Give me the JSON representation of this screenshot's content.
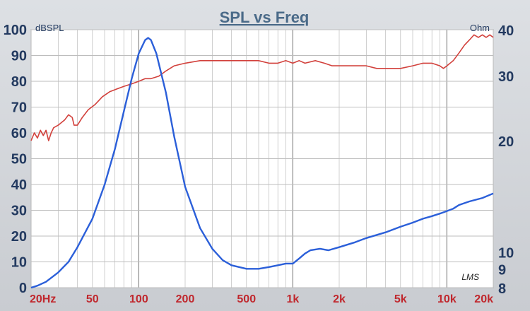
{
  "chart_data": {
    "type": "line",
    "title": "SPL vs Freq",
    "ylabel_left": "dBSPL",
    "ylabel_right": "Ohm",
    "watermark": "LMS",
    "x_scale": "log",
    "xlim": [
      20,
      20000
    ],
    "x_ticks": [
      {
        "value": 20,
        "label": "20Hz"
      },
      {
        "value": 50,
        "label": "50"
      },
      {
        "value": 100,
        "label": "100"
      },
      {
        "value": 200,
        "label": "200"
      },
      {
        "value": 500,
        "label": "500"
      },
      {
        "value": 1000,
        "label": "1k"
      },
      {
        "value": 2000,
        "label": "2k"
      },
      {
        "value": 5000,
        "label": "5k"
      },
      {
        "value": 10000,
        "label": "10k"
      },
      {
        "value": 20000,
        "label": "20k"
      }
    ],
    "ylim_left": [
      0,
      100
    ],
    "y_ticks_left": [
      0,
      10,
      20,
      30,
      40,
      50,
      60,
      70,
      80,
      90,
      100
    ],
    "y_scale_right": "log",
    "ylim_right": [
      8,
      40
    ],
    "y_ticks_right": [
      8,
      9,
      10,
      20,
      30,
      40
    ],
    "grid": true,
    "series": [
      {
        "axis": "left",
        "color": "#d2413c",
        "points": [
          [
            20,
            57
          ],
          [
            21,
            60
          ],
          [
            22,
            58
          ],
          [
            23,
            61
          ],
          [
            24,
            59
          ],
          [
            25,
            61
          ],
          [
            26,
            57
          ],
          [
            27,
            60
          ],
          [
            28,
            62
          ],
          [
            30,
            63
          ],
          [
            33,
            65
          ],
          [
            35,
            67
          ],
          [
            37,
            66
          ],
          [
            38,
            63
          ],
          [
            40,
            63
          ],
          [
            43,
            66
          ],
          [
            47,
            69
          ],
          [
            52,
            71
          ],
          [
            58,
            74
          ],
          [
            65,
            76
          ],
          [
            72,
            77
          ],
          [
            80,
            78
          ],
          [
            90,
            79
          ],
          [
            100,
            80
          ],
          [
            110,
            81
          ],
          [
            120,
            81
          ],
          [
            135,
            82
          ],
          [
            150,
            84
          ],
          [
            170,
            86
          ],
          [
            200,
            87
          ],
          [
            250,
            88
          ],
          [
            300,
            88
          ],
          [
            350,
            88
          ],
          [
            400,
            88
          ],
          [
            500,
            88
          ],
          [
            600,
            88
          ],
          [
            700,
            87
          ],
          [
            800,
            87
          ],
          [
            900,
            88
          ],
          [
            1000,
            87
          ],
          [
            1100,
            88
          ],
          [
            1200,
            87
          ],
          [
            1400,
            88
          ],
          [
            1600,
            87
          ],
          [
            1800,
            86
          ],
          [
            2000,
            86
          ],
          [
            2500,
            86
          ],
          [
            3000,
            86
          ],
          [
            3500,
            85
          ],
          [
            4000,
            85
          ],
          [
            5000,
            85
          ],
          [
            6000,
            86
          ],
          [
            7000,
            87
          ],
          [
            8000,
            87
          ],
          [
            9000,
            86
          ],
          [
            9500,
            85
          ],
          [
            10000,
            86
          ],
          [
            11000,
            88
          ],
          [
            12000,
            91
          ],
          [
            13000,
            94
          ],
          [
            14000,
            96
          ],
          [
            15000,
            98
          ],
          [
            16000,
            97
          ],
          [
            17000,
            98
          ],
          [
            18000,
            97
          ],
          [
            19000,
            98
          ],
          [
            20000,
            97
          ]
        ]
      },
      {
        "axis": "right",
        "color": "#2b5fd9",
        "points": [
          [
            20,
            8.0
          ],
          [
            22,
            8.1
          ],
          [
            25,
            8.3
          ],
          [
            30,
            8.8
          ],
          [
            35,
            9.4
          ],
          [
            40,
            10.3
          ],
          [
            50,
            12.3
          ],
          [
            60,
            15.2
          ],
          [
            70,
            19.0
          ],
          [
            80,
            24.0
          ],
          [
            90,
            29.5
          ],
          [
            100,
            34.5
          ],
          [
            110,
            37.5
          ],
          [
            115,
            38.0
          ],
          [
            120,
            37.5
          ],
          [
            130,
            34.5
          ],
          [
            150,
            27.0
          ],
          [
            170,
            20.5
          ],
          [
            200,
            15.0
          ],
          [
            250,
            11.6
          ],
          [
            300,
            10.2
          ],
          [
            350,
            9.5
          ],
          [
            400,
            9.2
          ],
          [
            500,
            9.0
          ],
          [
            600,
            9.0
          ],
          [
            700,
            9.1
          ],
          [
            800,
            9.2
          ],
          [
            900,
            9.3
          ],
          [
            1000,
            9.3
          ],
          [
            1100,
            9.6
          ],
          [
            1200,
            9.9
          ],
          [
            1300,
            10.1
          ],
          [
            1500,
            10.2
          ],
          [
            1700,
            10.1
          ],
          [
            2000,
            10.3
          ],
          [
            2500,
            10.6
          ],
          [
            3000,
            10.9
          ],
          [
            4000,
            11.3
          ],
          [
            5000,
            11.7
          ],
          [
            6000,
            12.0
          ],
          [
            7000,
            12.3
          ],
          [
            8000,
            12.5
          ],
          [
            9000,
            12.7
          ],
          [
            10000,
            12.9
          ],
          [
            11000,
            13.1
          ],
          [
            12000,
            13.4
          ],
          [
            14000,
            13.7
          ],
          [
            17000,
            14.0
          ],
          [
            20000,
            14.4
          ]
        ]
      }
    ]
  }
}
